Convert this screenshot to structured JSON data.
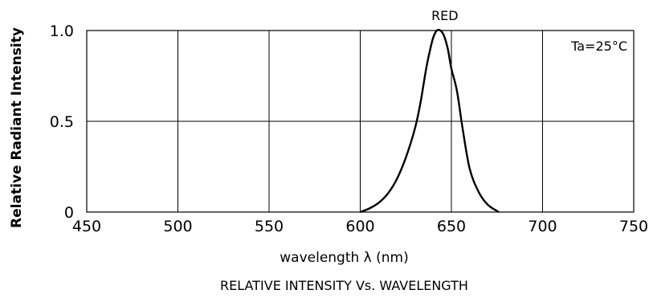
{
  "chart_data": {
    "type": "line",
    "title": "RELATIVE INTENSITY Vs. WAVELENGTH",
    "xlabel": "wavelength λ  (nm)",
    "ylabel": "Relative Radiant Intensity",
    "xlim": [
      450,
      750
    ],
    "ylim": [
      0,
      1.0
    ],
    "x_ticks": [
      450,
      500,
      550,
      600,
      650,
      700,
      750
    ],
    "x_tick_labels": [
      "450",
      "500",
      "550",
      "600",
      "650",
      "700",
      "750"
    ],
    "y_ticks": [
      0,
      0.5,
      1.0
    ],
    "y_tick_labels": [
      "0",
      "0.5",
      "1.0"
    ],
    "grid": true,
    "annotations": [
      "Ta=25°C"
    ],
    "series": [
      {
        "name": "RED",
        "x": [
          600,
          605,
          610,
          615,
          620,
          625,
          630,
          633,
          636,
          638,
          640,
          642,
          644,
          646,
          648,
          650,
          653,
          656,
          660,
          665,
          670,
          676
        ],
        "y": [
          0.0,
          0.02,
          0.05,
          0.1,
          0.18,
          0.3,
          0.46,
          0.6,
          0.78,
          0.88,
          0.96,
          1.0,
          1.0,
          0.97,
          0.9,
          0.79,
          0.67,
          0.47,
          0.24,
          0.11,
          0.04,
          0.0
        ]
      }
    ]
  }
}
